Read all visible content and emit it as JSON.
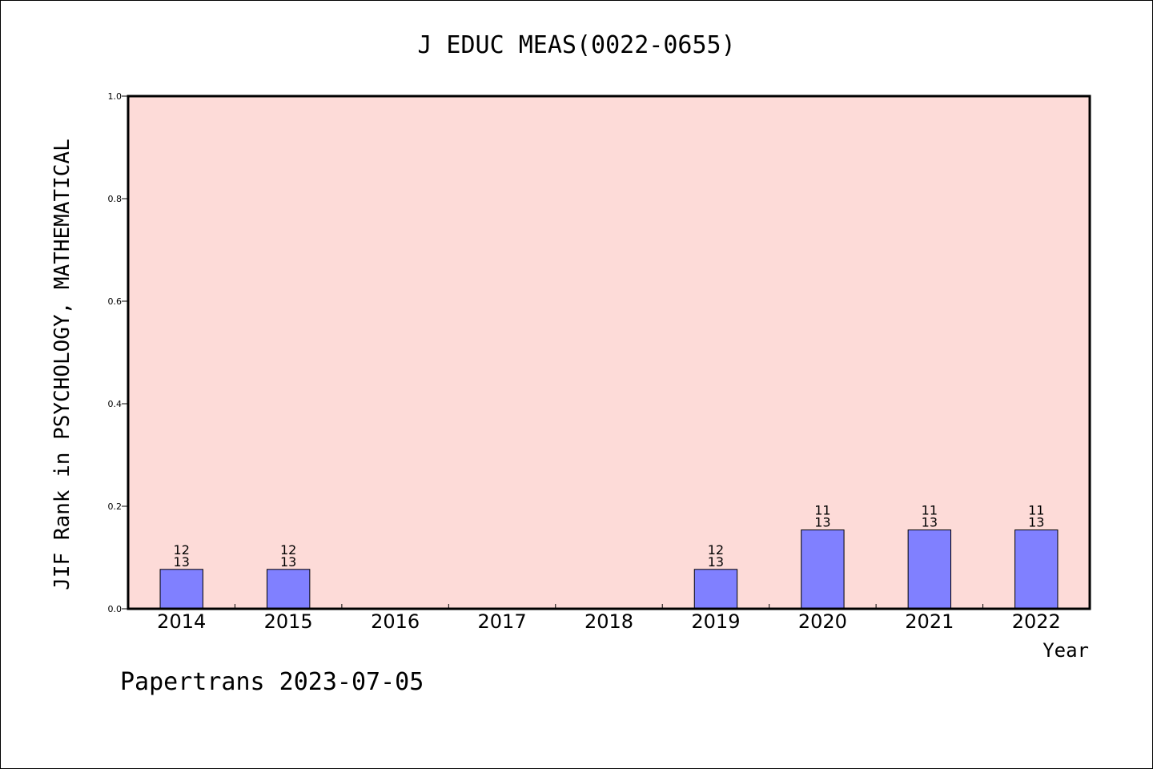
{
  "chart_data": {
    "type": "bar",
    "title": "J EDUC MEAS(0022-0655)",
    "xlabel": "Year",
    "ylabel": "JIF Rank in PSYCHOLOGY, MATHEMATICAL",
    "ylim": [
      0,
      1.0
    ],
    "yticks": [
      "0.0",
      "0.2",
      "0.4",
      "0.6",
      "0.8",
      "1.0"
    ],
    "categories": [
      "2014",
      "2015",
      "2016",
      "2017",
      "2018",
      "2019",
      "2020",
      "2021",
      "2022"
    ],
    "values": [
      0.0769,
      0.0769,
      null,
      null,
      null,
      0.0769,
      0.1538,
      0.1538,
      0.1538
    ],
    "rank_labels": [
      {
        "rank": "12",
        "total": "13"
      },
      {
        "rank": "12",
        "total": "13"
      },
      null,
      null,
      null,
      {
        "rank": "12",
        "total": "13"
      },
      {
        "rank": "11",
        "total": "13"
      },
      {
        "rank": "11",
        "total": "13"
      },
      {
        "rank": "11",
        "total": "13"
      }
    ],
    "grid": false,
    "colors": {
      "plot_background": "#fddbd8",
      "bar_fill": "#8080ff",
      "bar_stroke": "#000000"
    }
  },
  "footer": "Papertrans 2023-07-05"
}
